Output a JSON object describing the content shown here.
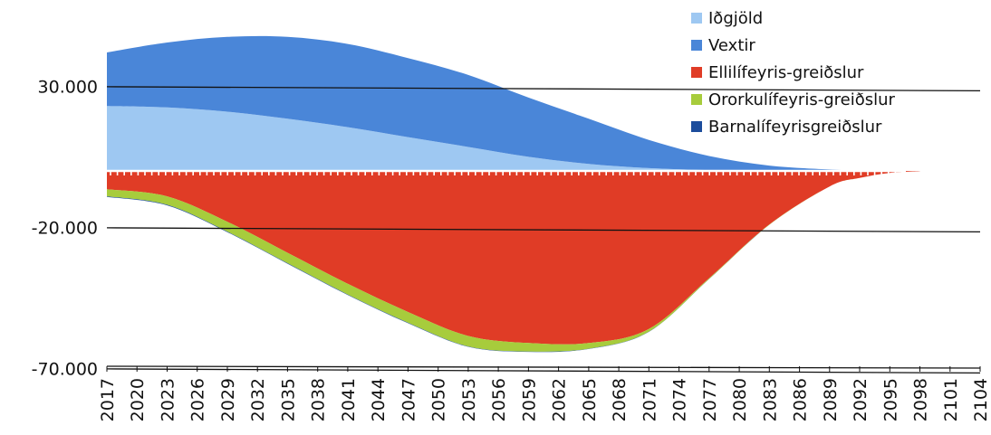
{
  "chart_data": {
    "type": "area",
    "yticks": [
      "30.000",
      "-20.000",
      "-70.000"
    ],
    "ytick_values": [
      30000,
      -20000,
      -70000
    ],
    "ylim": [
      -70000,
      48000
    ],
    "xlim": [
      2017,
      2104
    ],
    "x_tick_labels": [
      "2017",
      "2020",
      "2023",
      "2026",
      "2029",
      "2032",
      "2035",
      "2038",
      "2041",
      "2044",
      "2047",
      "2050",
      "2053",
      "2056",
      "2059",
      "2062",
      "2065",
      "2068",
      "2071",
      "2074",
      "2077",
      "2080",
      "2083",
      "2086",
      "2089",
      "2092",
      "2095",
      "2098",
      "2101",
      "2104"
    ],
    "legend_position": "top-right",
    "x": [
      2017,
      2023,
      2029,
      2035,
      2041,
      2047,
      2053,
      2059,
      2065,
      2071,
      2077,
      2083,
      2089,
      2092,
      2095,
      2098
    ],
    "series": [
      {
        "name": "Iðgjöld",
        "color": "#9ec8f2",
        "values": [
          23000,
          22500,
          21000,
          18500,
          15500,
          12000,
          8500,
          5000,
          2500,
          1000,
          300,
          100,
          0,
          0,
          0,
          0
        ]
      },
      {
        "name": "Vextir",
        "color": "#4a86d8",
        "values": [
          19000,
          23000,
          26500,
          29000,
          29500,
          28000,
          25500,
          21000,
          16000,
          10000,
          5000,
          1800,
          500,
          150,
          40,
          0
        ]
      },
      {
        "name": "Ellilífeyris-greiðslur",
        "color": "#e03c26",
        "values": [
          -6500,
          -9000,
          -18000,
          -29000,
          -40000,
          -50000,
          -58500,
          -61000,
          -61000,
          -56000,
          -38000,
          -19000,
          -5500,
          -2500,
          -700,
          -100
        ]
      },
      {
        "name": "Ororkulífeyris-greiðslur",
        "color": "#a7cc3c",
        "values": [
          -2500,
          -3000,
          -3500,
          -3700,
          -3800,
          -3800,
          -3700,
          -3000,
          -2000,
          -1000,
          -300,
          -100,
          0,
          0,
          0,
          0
        ]
      },
      {
        "name": "Barnalífeyrisgreiðslur",
        "color": "#1c4d9c",
        "values": [
          -200,
          -200,
          -200,
          -200,
          -180,
          -160,
          -150,
          -130,
          -100,
          -60,
          -30,
          -10,
          0,
          0,
          0,
          0
        ]
      }
    ]
  }
}
